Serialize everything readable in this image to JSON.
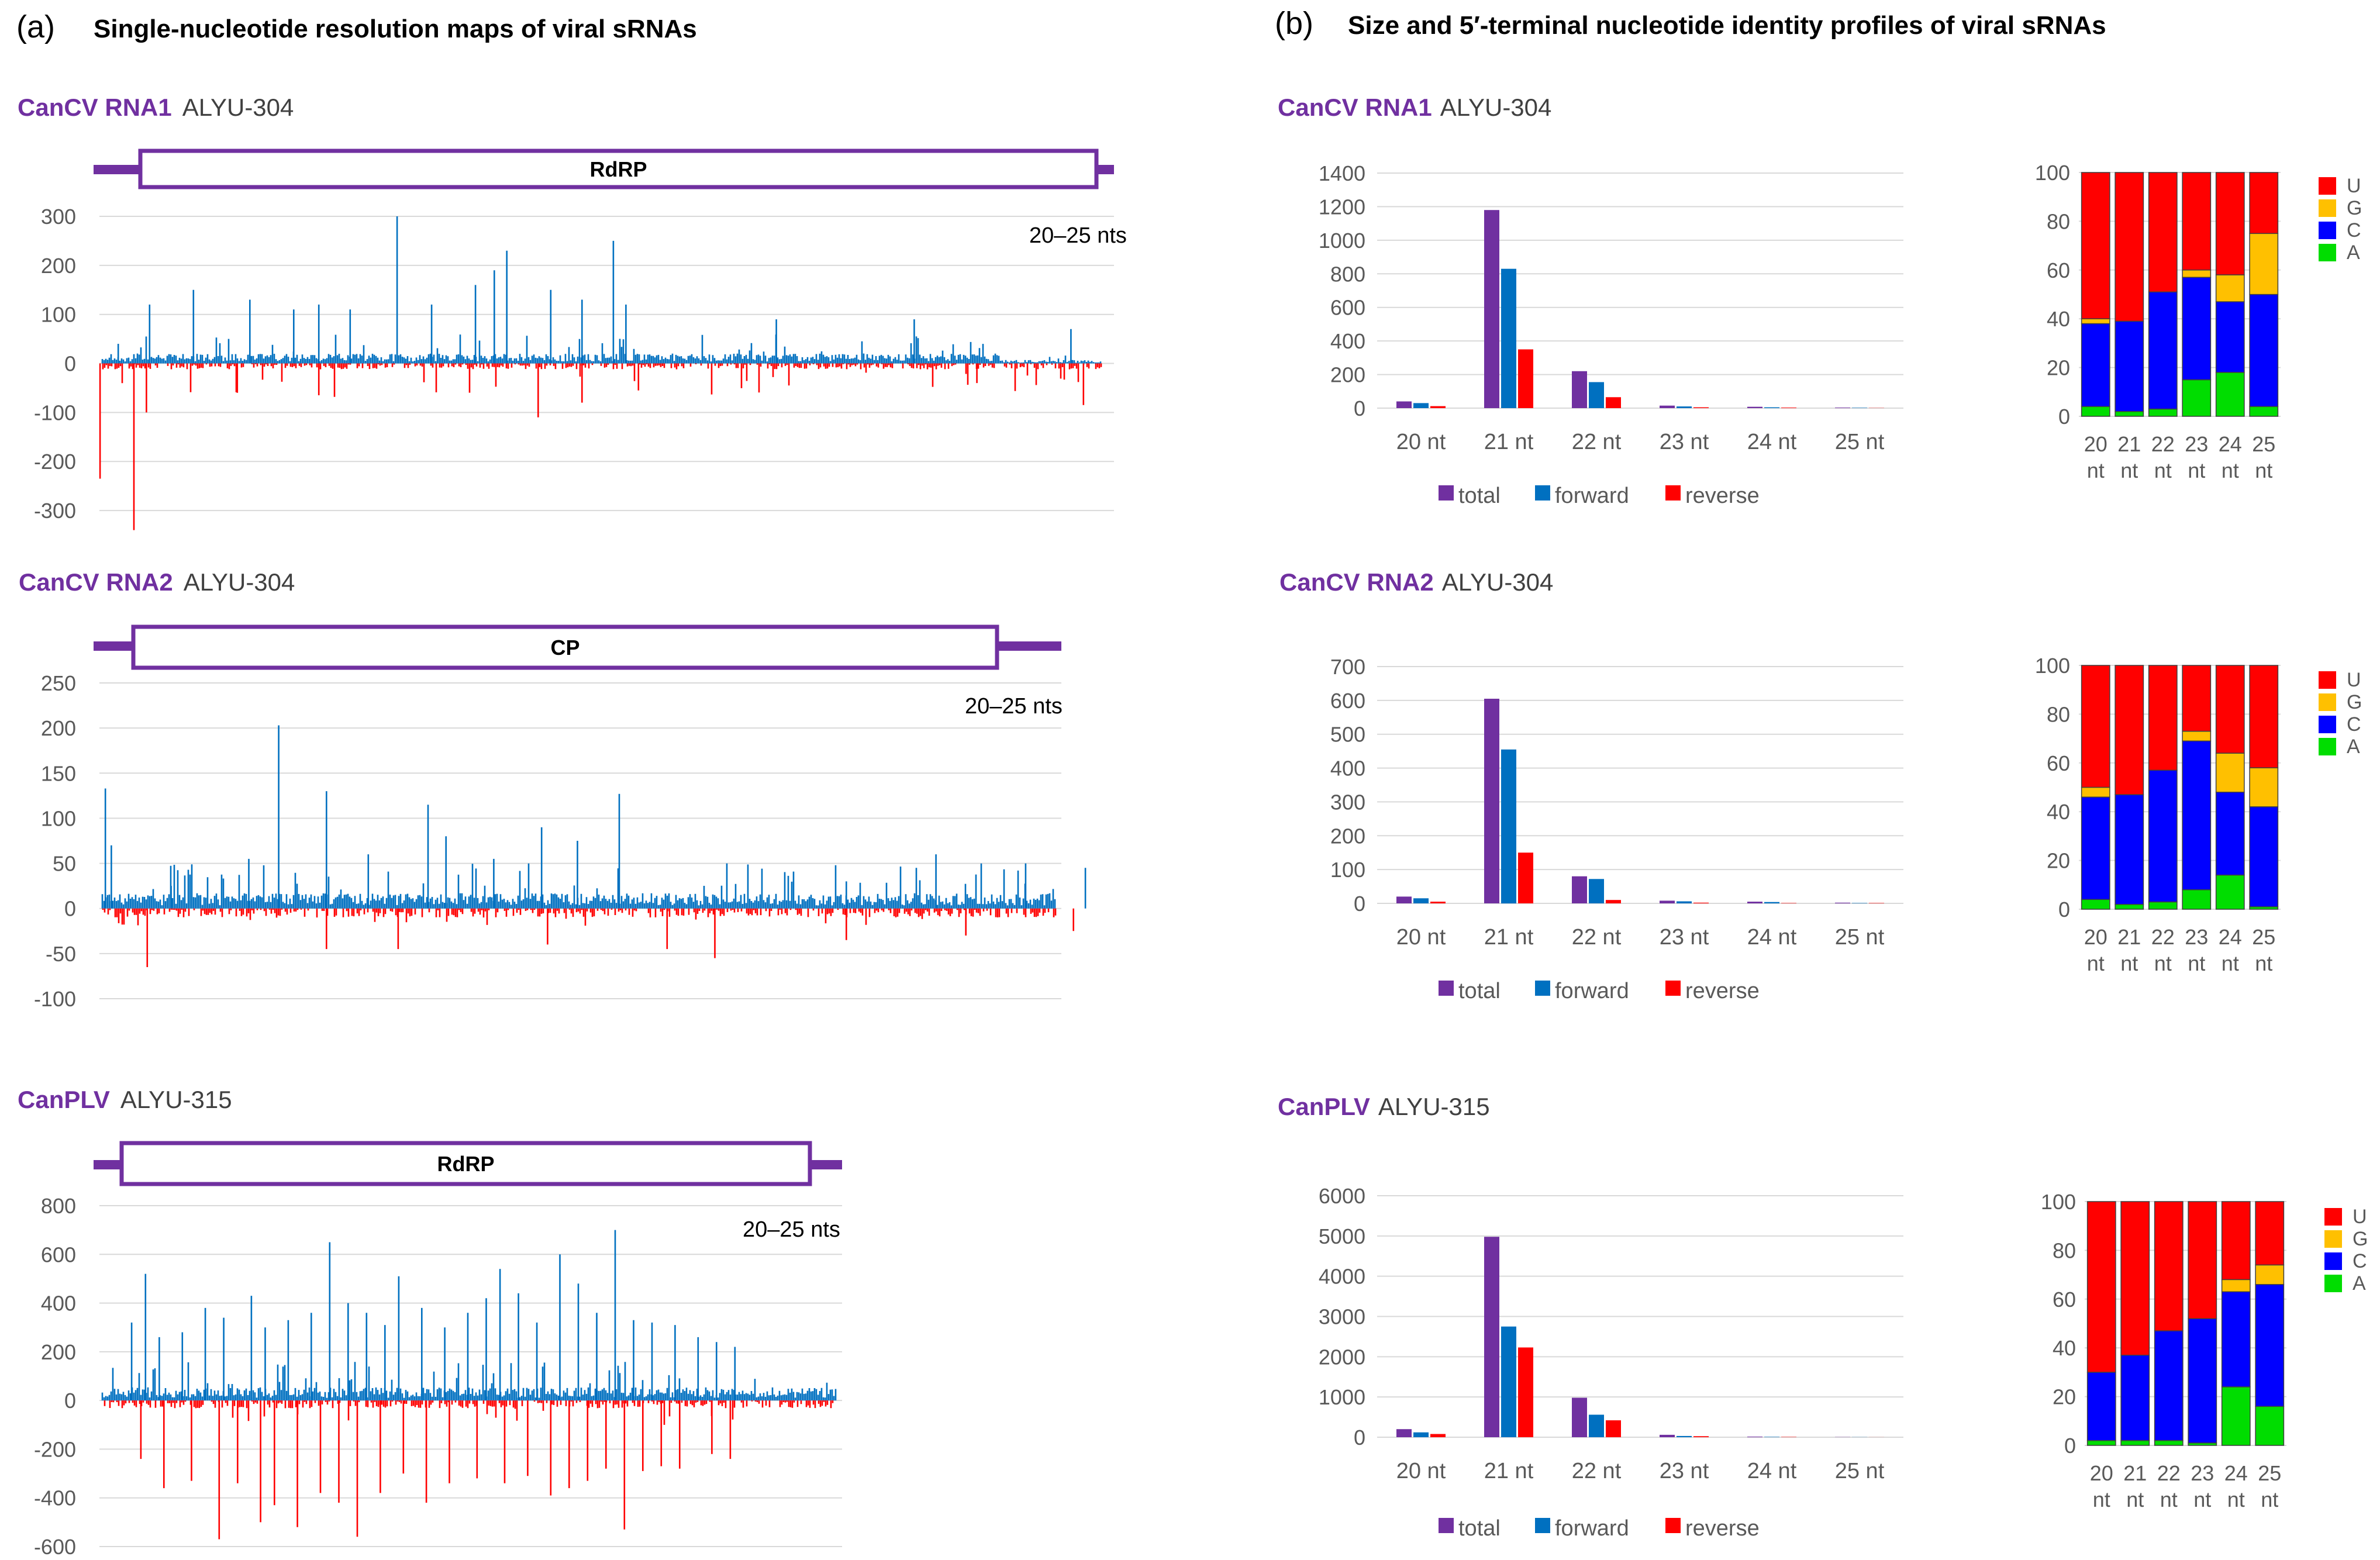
{
  "panel_a": {
    "label": "(a)",
    "title": "Single-nucleotide resolution maps of viral sRNAs"
  },
  "panel_b": {
    "label": "(b)",
    "title": "Size and 5′-terminal nucleotide identity profiles of viral sRNAs"
  },
  "colors": {
    "virus_purple": "#7030a0",
    "library_gray": "#404040",
    "forward_blue": "#0070c0",
    "reverse_red": "#ff0000",
    "total_purple": "#7030a0",
    "nuc_U": "#ff0000",
    "nuc_G": "#ffc000",
    "nuc_C": "#0000ff",
    "nuc_A": "#00dd00",
    "grid": "#d9d9d9",
    "axis_text": "#595959"
  },
  "chart_data": [
    {
      "type": "bar",
      "id": "map1",
      "virus": "CanCV RNA1",
      "library": "ALYU-304",
      "orf_label": "RdRP",
      "size_range_label": "20–25 nts",
      "ylim": [
        -350,
        300
      ],
      "yticks": [
        300,
        200,
        100,
        0,
        -100,
        -200,
        -300
      ],
      "description": "Forward (positive) and reverse (negative) sRNA counts per genome position",
      "peaks_forward": [
        [
          0.03,
          40
        ],
        [
          0.08,
          120
        ],
        [
          0.15,
          150
        ],
        [
          0.24,
          130
        ],
        [
          0.31,
          110
        ],
        [
          0.35,
          120
        ],
        [
          0.4,
          110
        ],
        [
          0.475,
          300
        ],
        [
          0.53,
          120
        ],
        [
          0.6,
          160
        ],
        [
          0.63,
          190
        ],
        [
          0.65,
          230
        ],
        [
          0.72,
          150
        ],
        [
          0.77,
          130
        ],
        [
          0.82,
          250
        ],
        [
          0.84,
          120
        ],
        [
          1.08,
          90
        ],
        [
          1.3,
          90
        ],
        [
          1.55,
          70
        ]
      ],
      "peaks_reverse": [
        [
          0.001,
          -235
        ],
        [
          0.055,
          -340
        ],
        [
          0.075,
          -100
        ],
        [
          0.22,
          -60
        ],
        [
          0.35,
          -65
        ],
        [
          0.7,
          -110
        ],
        [
          0.77,
          -80
        ],
        [
          0.86,
          -55
        ],
        [
          1.1,
          -45
        ],
        [
          1.4,
          -40
        ],
        [
          1.57,
          -85
        ]
      ]
    },
    {
      "type": "bar",
      "id": "map2",
      "virus": "CanCV RNA2",
      "library": "ALYU-304",
      "orf_label": "CP",
      "size_range_label": "20–25 nts",
      "ylim": [
        -100,
        250
      ],
      "yticks": [
        250,
        200,
        150,
        100,
        50,
        0,
        -50,
        -100
      ],
      "description": "Forward (positive) and reverse (negative) sRNA counts per genome position",
      "peaks_forward": [
        [
          0.01,
          133
        ],
        [
          0.02,
          70
        ],
        [
          0.12,
          25
        ],
        [
          0.25,
          55
        ],
        [
          0.3,
          203
        ],
        [
          0.38,
          130
        ],
        [
          0.45,
          60
        ],
        [
          0.55,
          115
        ],
        [
          0.58,
          80
        ],
        [
          0.66,
          55
        ],
        [
          0.74,
          90
        ],
        [
          0.8,
          75
        ],
        [
          0.87,
          127
        ],
        [
          1.05,
          50
        ],
        [
          1.25,
          30
        ],
        [
          1.4,
          60
        ],
        [
          1.55,
          50
        ],
        [
          1.65,
          45
        ]
      ],
      "peaks_reverse": [
        [
          0.08,
          -65
        ],
        [
          0.38,
          -45
        ],
        [
          0.5,
          -45
        ],
        [
          0.75,
          -40
        ],
        [
          0.95,
          -45
        ],
        [
          1.03,
          -55
        ],
        [
          1.25,
          -35
        ],
        [
          1.45,
          -30
        ],
        [
          1.63,
          -25
        ]
      ]
    },
    {
      "type": "bar",
      "id": "map3",
      "virus": "CanPLV",
      "library": "ALYU-315",
      "orf_label": "RdRP",
      "size_range_label": "20–25 nts",
      "ylim": [
        -600,
        800
      ],
      "yticks": [
        800,
        600,
        400,
        200,
        0,
        -200,
        -400,
        -600
      ],
      "description": "Forward (positive) and reverse (negative) sRNA counts per genome position",
      "peaks_forward": [
        [
          0.07,
          320
        ],
        [
          0.1,
          520
        ],
        [
          0.13,
          260
        ],
        [
          0.18,
          280
        ],
        [
          0.23,
          380
        ],
        [
          0.27,
          340
        ],
        [
          0.33,
          430
        ],
        [
          0.36,
          300
        ],
        [
          0.41,
          330
        ],
        [
          0.46,
          360
        ],
        [
          0.5,
          650
        ],
        [
          0.54,
          400
        ],
        [
          0.58,
          360
        ],
        [
          0.62,
          310
        ],
        [
          0.65,
          510
        ],
        [
          0.7,
          380
        ],
        [
          0.75,
          300
        ],
        [
          0.8,
          360
        ],
        [
          0.84,
          420
        ],
        [
          0.87,
          540
        ],
        [
          0.91,
          440
        ],
        [
          0.95,
          320
        ],
        [
          1.0,
          600
        ],
        [
          1.04,
          480
        ],
        [
          1.08,
          360
        ],
        [
          1.12,
          700
        ],
        [
          1.16,
          330
        ],
        [
          1.2,
          320
        ],
        [
          1.25,
          310
        ],
        [
          1.3,
          260
        ],
        [
          1.34,
          240
        ],
        [
          1.38,
          220
        ]
      ],
      "peaks_reverse": [
        [
          0.09,
          -240
        ],
        [
          0.14,
          -360
        ],
        [
          0.2,
          -330
        ],
        [
          0.26,
          -570
        ],
        [
          0.3,
          -340
        ],
        [
          0.35,
          -500
        ],
        [
          0.38,
          -430
        ],
        [
          0.43,
          -520
        ],
        [
          0.48,
          -380
        ],
        [
          0.52,
          -420
        ],
        [
          0.56,
          -560
        ],
        [
          0.61,
          -380
        ],
        [
          0.66,
          -300
        ],
        [
          0.71,
          -420
        ],
        [
          0.76,
          -340
        ],
        [
          0.82,
          -320
        ],
        [
          0.88,
          -340
        ],
        [
          0.93,
          -310
        ],
        [
          0.98,
          -390
        ],
        [
          1.02,
          -360
        ],
        [
          1.06,
          -330
        ],
        [
          1.1,
          -280
        ],
        [
          1.14,
          -530
        ],
        [
          1.18,
          -290
        ],
        [
          1.22,
          -270
        ],
        [
          1.26,
          -280
        ],
        [
          1.33,
          -220
        ],
        [
          1.37,
          -240
        ]
      ]
    },
    {
      "type": "bar",
      "id": "size1",
      "virus": "CanCV RNA1",
      "library": "ALYU-304",
      "categories": [
        "20 nt",
        "21 nt",
        "22 nt",
        "23 nt",
        "24 nt",
        "25 nt"
      ],
      "ylim": [
        0,
        1400
      ],
      "yticks": [
        1400,
        1200,
        1000,
        800,
        600,
        400,
        200,
        0
      ],
      "series": [
        {
          "name": "total",
          "values": [
            40,
            1180,
            220,
            15,
            8,
            3
          ]
        },
        {
          "name": "forward",
          "values": [
            30,
            830,
            155,
            10,
            5,
            2
          ]
        },
        {
          "name": "reverse",
          "values": [
            12,
            350,
            65,
            5,
            3,
            1
          ]
        }
      ],
      "legend_position": "bottom"
    },
    {
      "type": "bar",
      "id": "size2",
      "virus": "CanCV RNA2",
      "library": "ALYU-304",
      "categories": [
        "20 nt",
        "21 nt",
        "22 nt",
        "23 nt",
        "24 nt",
        "25 nt"
      ],
      "ylim": [
        0,
        700
      ],
      "yticks": [
        700,
        600,
        500,
        400,
        300,
        200,
        100,
        0
      ],
      "series": [
        {
          "name": "total",
          "values": [
            20,
            605,
            80,
            8,
            5,
            2
          ]
        },
        {
          "name": "forward",
          "values": [
            15,
            455,
            72,
            6,
            4,
            1
          ]
        },
        {
          "name": "reverse",
          "values": [
            5,
            150,
            10,
            2,
            1,
            1
          ]
        }
      ],
      "legend_position": "bottom"
    },
    {
      "type": "bar",
      "id": "size3",
      "virus": "CanPLV",
      "library": "ALYU-315",
      "categories": [
        "20 nt",
        "21 nt",
        "22 nt",
        "23 nt",
        "24 nt",
        "25 nt"
      ],
      "ylim": [
        0,
        6000
      ],
      "yticks": [
        6000,
        5000,
        4000,
        3000,
        2000,
        1000,
        0
      ],
      "series": [
        {
          "name": "total",
          "values": [
            200,
            4980,
            980,
            60,
            15,
            5
          ]
        },
        {
          "name": "forward",
          "values": [
            120,
            2750,
            560,
            30,
            8,
            3
          ]
        },
        {
          "name": "reverse",
          "values": [
            80,
            2230,
            420,
            25,
            7,
            2
          ]
        }
      ],
      "legend_position": "bottom"
    },
    {
      "type": "bar",
      "id": "nuc1",
      "stacked": true,
      "categories": [
        "20 nt",
        "21 nt",
        "22 nt",
        "23 nt",
        "24 nt",
        "25 nt"
      ],
      "ylim": [
        0,
        100
      ],
      "yticks": [
        100,
        80,
        60,
        40,
        20,
        0
      ],
      "series": [
        {
          "name": "A",
          "values": [
            4,
            2,
            3,
            15,
            18,
            4
          ]
        },
        {
          "name": "C",
          "values": [
            34,
            37,
            48,
            42,
            29,
            46
          ]
        },
        {
          "name": "G",
          "values": [
            2,
            0,
            0,
            3,
            11,
            25
          ]
        },
        {
          "name": "U",
          "values": [
            60,
            61,
            49,
            40,
            42,
            25
          ]
        }
      ],
      "legend_order": [
        "U",
        "G",
        "C",
        "A"
      ],
      "legend_position": "right"
    },
    {
      "type": "bar",
      "id": "nuc2",
      "stacked": true,
      "categories": [
        "20 nt",
        "21 nt",
        "22 nt",
        "23 nt",
        "24 nt",
        "25 nt"
      ],
      "ylim": [
        0,
        100
      ],
      "yticks": [
        100,
        80,
        60,
        40,
        20,
        0
      ],
      "series": [
        {
          "name": "A",
          "values": [
            4,
            2,
            3,
            8,
            14,
            1
          ]
        },
        {
          "name": "C",
          "values": [
            42,
            45,
            54,
            61,
            34,
            41
          ]
        },
        {
          "name": "G",
          "values": [
            4,
            0,
            0,
            4,
            16,
            16
          ]
        },
        {
          "name": "U",
          "values": [
            50,
            53,
            43,
            27,
            36,
            42
          ]
        }
      ],
      "legend_order": [
        "U",
        "G",
        "C",
        "A"
      ],
      "legend_position": "right"
    },
    {
      "type": "bar",
      "id": "nuc3",
      "stacked": true,
      "categories": [
        "20 nt",
        "21 nt",
        "22 nt",
        "23 nt",
        "24 nt",
        "25 nt"
      ],
      "ylim": [
        0,
        100
      ],
      "yticks": [
        100,
        80,
        60,
        40,
        20,
        0
      ],
      "series": [
        {
          "name": "A",
          "values": [
            2,
            2,
            2,
            1,
            24,
            16
          ]
        },
        {
          "name": "C",
          "values": [
            28,
            35,
            45,
            51,
            39,
            50
          ]
        },
        {
          "name": "G",
          "values": [
            0,
            0,
            0,
            0,
            5,
            8
          ]
        },
        {
          "name": "U",
          "values": [
            70,
            63,
            53,
            48,
            32,
            26
          ]
        }
      ],
      "legend_order": [
        "U",
        "G",
        "C",
        "A"
      ],
      "legend_position": "right"
    }
  ]
}
